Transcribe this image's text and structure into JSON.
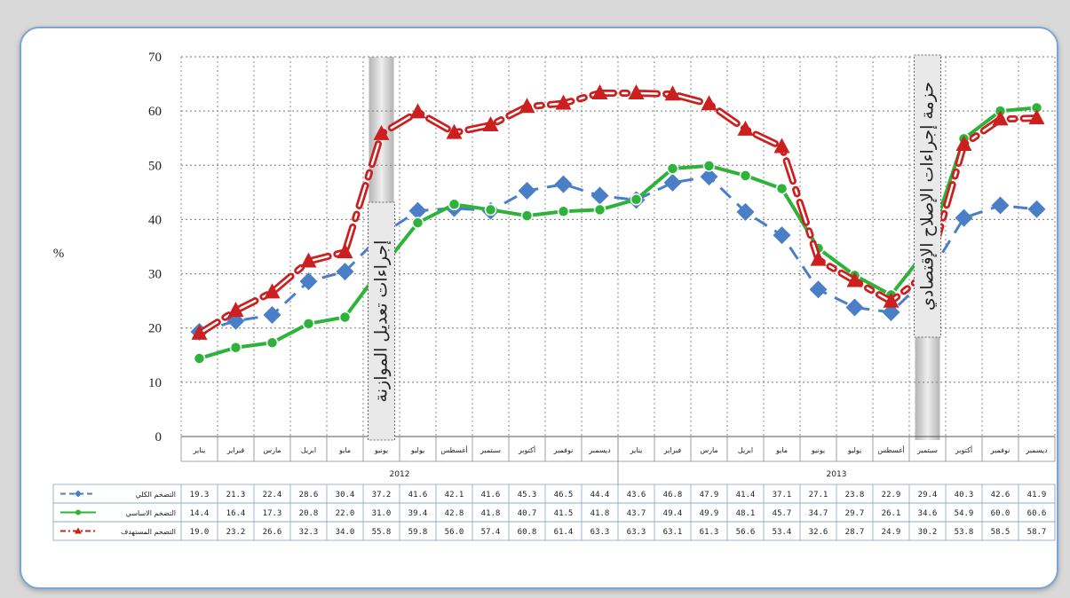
{
  "chart_data": {
    "type": "line",
    "ylabel": "%",
    "ylim": [
      0,
      70
    ],
    "yticks": [
      0,
      10,
      20,
      30,
      40,
      50,
      60,
      70
    ],
    "grid": true,
    "categories": [
      "يناير",
      "فبراير",
      "مارس",
      "ابريل",
      "مايو",
      "يونيو",
      "يوليو",
      "أغسطس",
      "سبتمبر",
      "أكتوبر",
      "نوفمبر",
      "ديسمبر",
      "يناير",
      "فبراير",
      "مارس",
      "ابريل",
      "مايو",
      "يونيو",
      "يوليو",
      "أغسطس",
      "سبتمبر",
      "أكتوبر",
      "نوفمبر",
      "ديسمبر"
    ],
    "years": [
      {
        "label": "2012",
        "start": 0,
        "end": 11
      },
      {
        "label": "2013",
        "start": 12,
        "end": 23
      }
    ],
    "series": [
      {
        "name": "التضخم الكلي",
        "color": "#4a7fc8",
        "style": "dashed",
        "marker": "diamond",
        "values": [
          19.3,
          21.3,
          22.4,
          28.6,
          30.4,
          37.2,
          41.6,
          42.1,
          41.6,
          45.3,
          46.5,
          44.4,
          43.6,
          46.8,
          47.9,
          41.4,
          37.1,
          27.1,
          23.8,
          22.9,
          29.4,
          40.3,
          42.6,
          41.9
        ]
      },
      {
        "name": "التضخم الاساسي",
        "color": "#2db33a",
        "style": "solid",
        "marker": "circle",
        "values": [
          14.4,
          16.4,
          17.3,
          20.8,
          22.0,
          31.0,
          39.4,
          42.8,
          41.8,
          40.7,
          41.5,
          41.8,
          43.7,
          49.4,
          49.9,
          48.1,
          45.7,
          34.7,
          29.7,
          26.1,
          34.6,
          54.9,
          60.0,
          60.6
        ]
      },
      {
        "name": "التضخم المستهدف",
        "color": "#cc1f1f",
        "style": "dashdot",
        "marker": "triangle",
        "values": [
          19.0,
          23.2,
          26.6,
          32.3,
          34.0,
          55.8,
          59.8,
          56.0,
          57.4,
          60.8,
          61.4,
          63.3,
          63.3,
          63.1,
          61.3,
          56.6,
          53.4,
          32.6,
          28.7,
          24.9,
          30.2,
          53.8,
          58.5,
          58.7
        ]
      }
    ],
    "annotations": [
      {
        "text": "إجراءات تعديل الموازنة",
        "category_index": 5
      },
      {
        "text": "حزمة إجراءات الإصلاح الإقتصادي",
        "category_index": 20
      }
    ]
  }
}
